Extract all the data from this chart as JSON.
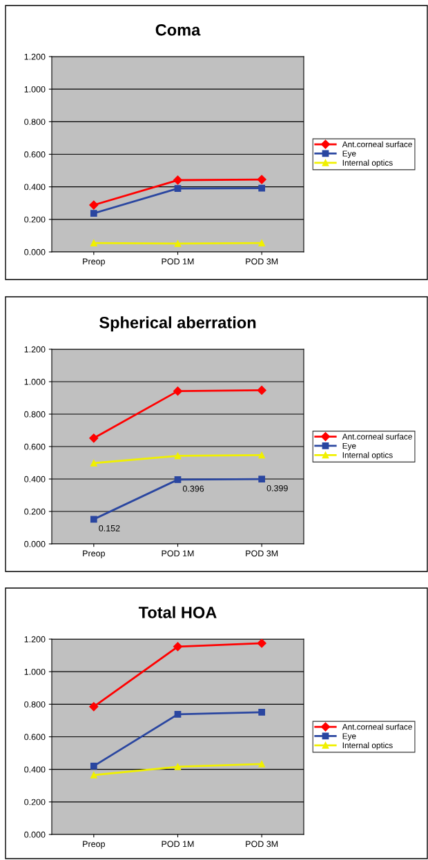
{
  "chart_data": [
    {
      "type": "line",
      "title": "Coma",
      "categories": [
        "Preop",
        "POD 1M",
        "POD 3M"
      ],
      "ylim": [
        0,
        1.2
      ],
      "yticks": [
        {
          "value": 0,
          "label": "0.000"
        },
        {
          "value": 0.2,
          "label": "0.200"
        },
        {
          "value": 0.4,
          "label": "0.400"
        },
        {
          "value": 0.6,
          "label": "0.600"
        },
        {
          "value": 0.8,
          "label": "0.800"
        },
        {
          "value": 1.0,
          "label": "1.000"
        },
        {
          "value": 1.2,
          "label": "1.200"
        }
      ],
      "grid": "y",
      "legend": "right",
      "series": [
        {
          "name": "Ant.corneal surface",
          "color": "#ff0000",
          "marker": "diamond",
          "values": [
            0.288,
            0.441,
            0.445
          ]
        },
        {
          "name": "Eye",
          "color": "#2a46a0",
          "marker": "square",
          "values": [
            0.237,
            0.39,
            0.392
          ]
        },
        {
          "name": "Internal optics",
          "color": "#f0f000",
          "marker": "triangle",
          "values": [
            0.055,
            0.051,
            0.055
          ]
        }
      ]
    },
    {
      "type": "line",
      "title": "Spherical aberration",
      "categories": [
        "Preop",
        "POD 1M",
        "POD 3M"
      ],
      "ylim": [
        0,
        1.2
      ],
      "yticks": [
        {
          "value": 0,
          "label": "0.000"
        },
        {
          "value": 0.2,
          "label": "0.200"
        },
        {
          "value": 0.4,
          "label": "0.400"
        },
        {
          "value": 0.6,
          "label": "0.600"
        },
        {
          "value": 0.8,
          "label": "0.800"
        },
        {
          "value": 1.0,
          "label": "1.000"
        },
        {
          "value": 1.2,
          "label": "1.200"
        }
      ],
      "grid": "y",
      "legend": "right",
      "series": [
        {
          "name": "Ant.corneal surface",
          "color": "#ff0000",
          "marker": "diamond",
          "values": [
            0.652,
            0.942,
            0.947
          ]
        },
        {
          "name": "Eye",
          "color": "#2a46a0",
          "marker": "square",
          "values": [
            0.152,
            0.396,
            0.399
          ],
          "value_labels": [
            "0.152",
            "0.396",
            "0.399"
          ]
        },
        {
          "name": "Internal optics",
          "color": "#f0f000",
          "marker": "triangle",
          "values": [
            0.498,
            0.543,
            0.547
          ]
        }
      ]
    },
    {
      "type": "line",
      "title": "Total HOA",
      "categories": [
        "Preop",
        "POD 1M",
        "POD 3M"
      ],
      "ylim": [
        0,
        1.2
      ],
      "yticks": [
        {
          "value": 0,
          "label": "0.000"
        },
        {
          "value": 0.2,
          "label": "0.200"
        },
        {
          "value": 0.4,
          "label": "0.400"
        },
        {
          "value": 0.6,
          "label": "0.600"
        },
        {
          "value": 0.8,
          "label": "0.800"
        },
        {
          "value": 1.0,
          "label": "1.000"
        },
        {
          "value": 1.2,
          "label": "1.200"
        }
      ],
      "grid": "y",
      "legend": "right",
      "series": [
        {
          "name": "Ant.corneal surface",
          "color": "#ff0000",
          "marker": "diamond",
          "values": [
            0.785,
            1.154,
            1.175
          ]
        },
        {
          "name": "Eye",
          "color": "#2a46a0",
          "marker": "square",
          "values": [
            0.42,
            0.738,
            0.751
          ]
        },
        {
          "name": "Internal optics",
          "color": "#f0f000",
          "marker": "triangle",
          "values": [
            0.365,
            0.416,
            0.433
          ]
        }
      ]
    }
  ]
}
